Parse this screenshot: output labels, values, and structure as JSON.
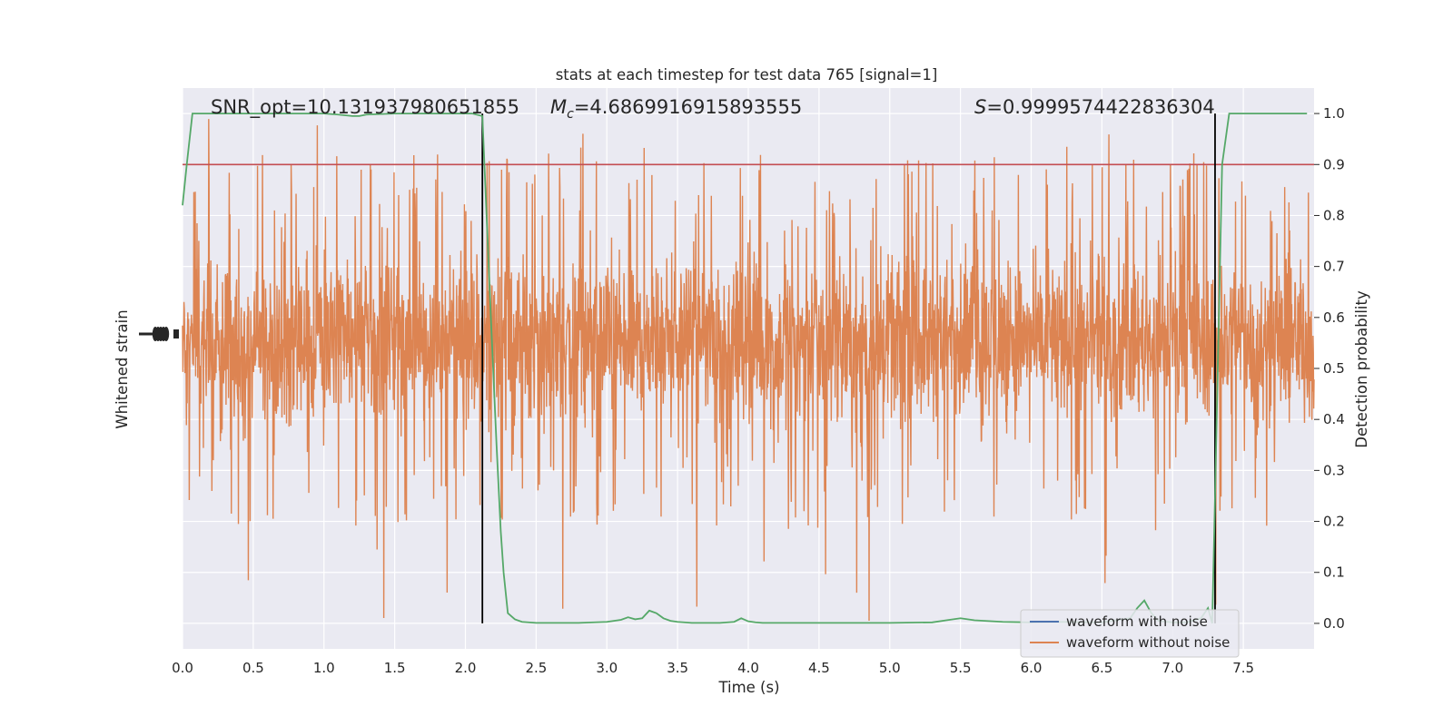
{
  "chart_data": {
    "type": "line",
    "title": "stats at each timestep for test data 765 [signal=1]",
    "xlabel": "Time (s)",
    "ylabel_left": "Whitened strain",
    "ylabel_right": "Detection probability",
    "xlim": [
      0.0,
      8.0
    ],
    "ylim_right": [
      -0.05,
      1.05
    ],
    "x_ticks": [
      "0.0",
      "0.5",
      "1.0",
      "1.5",
      "2.0",
      "2.5",
      "3.0",
      "3.5",
      "4.0",
      "4.5",
      "5.0",
      "5.5",
      "6.0",
      "6.5",
      "7.0",
      "7.5"
    ],
    "y_ticks_right": [
      "0.0",
      "0.1",
      "0.2",
      "0.3",
      "0.4",
      "0.5",
      "0.6",
      "0.7",
      "0.8",
      "0.9",
      "1.0"
    ],
    "grid": true,
    "legend_position": "lower-right",
    "annotations": {
      "snr": "SNR_opt=10.131937980651855",
      "mc_symbol": "M",
      "mc_subscript": "c",
      "mc_value": "=4.6869916915893555",
      "s_symbol": "S",
      "s_value": "=0.9999574422836304"
    },
    "threshold": 0.9,
    "event_markers_x": [
      2.12,
      7.3
    ],
    "series": [
      {
        "name": "waveform with noise",
        "color": "#4c72b0",
        "note_values": "hidden beneath orange trace"
      },
      {
        "name": "waveform without noise",
        "color": "#dd8452",
        "band_center": 0.555,
        "band_half_width": 0.11,
        "peak_max": 1.0,
        "trough_min": 0.0
      },
      {
        "color": "#55a868",
        "x": [
          0.0,
          0.03,
          0.07,
          0.12,
          0.2,
          0.5,
          0.8,
          1.0,
          1.1,
          1.2,
          1.25,
          1.3,
          1.5,
          1.8,
          2.0,
          2.05,
          2.12,
          2.18,
          2.22,
          2.25,
          2.27,
          2.3,
          2.35,
          2.4,
          2.5,
          2.6,
          2.8,
          3.0,
          3.1,
          3.15,
          3.2,
          3.25,
          3.3,
          3.35,
          3.4,
          3.45,
          3.5,
          3.6,
          3.8,
          3.9,
          3.95,
          4.0,
          4.05,
          4.1,
          4.3,
          4.5,
          5.0,
          5.3,
          5.4,
          5.5,
          5.6,
          5.8,
          6.0,
          6.2,
          6.5,
          6.7,
          6.75,
          6.8,
          6.85,
          6.9,
          7.0,
          7.1,
          7.2,
          7.25,
          7.28,
          7.3,
          7.35,
          7.4,
          7.5,
          7.6,
          7.7,
          7.8,
          7.95
        ],
        "y": [
          0.82,
          0.9,
          1.0,
          1.0,
          1.0,
          1.0,
          1.0,
          1.0,
          0.998,
          0.995,
          0.995,
          0.998,
          1.0,
          1.0,
          1.0,
          1.0,
          0.995,
          0.6,
          0.35,
          0.18,
          0.1,
          0.02,
          0.008,
          0.003,
          0.001,
          0.001,
          0.001,
          0.003,
          0.007,
          0.012,
          0.008,
          0.01,
          0.025,
          0.02,
          0.01,
          0.005,
          0.003,
          0.001,
          0.001,
          0.003,
          0.01,
          0.004,
          0.002,
          0.001,
          0.001,
          0.001,
          0.001,
          0.002,
          0.006,
          0.01,
          0.006,
          0.003,
          0.002,
          0.003,
          0.002,
          0.01,
          0.03,
          0.045,
          0.02,
          0.005,
          0.002,
          0.002,
          0.01,
          0.03,
          0.0,
          0.25,
          0.9,
          1.0,
          1.0,
          1.0,
          1.0,
          1.0,
          1.0
        ]
      }
    ]
  }
}
